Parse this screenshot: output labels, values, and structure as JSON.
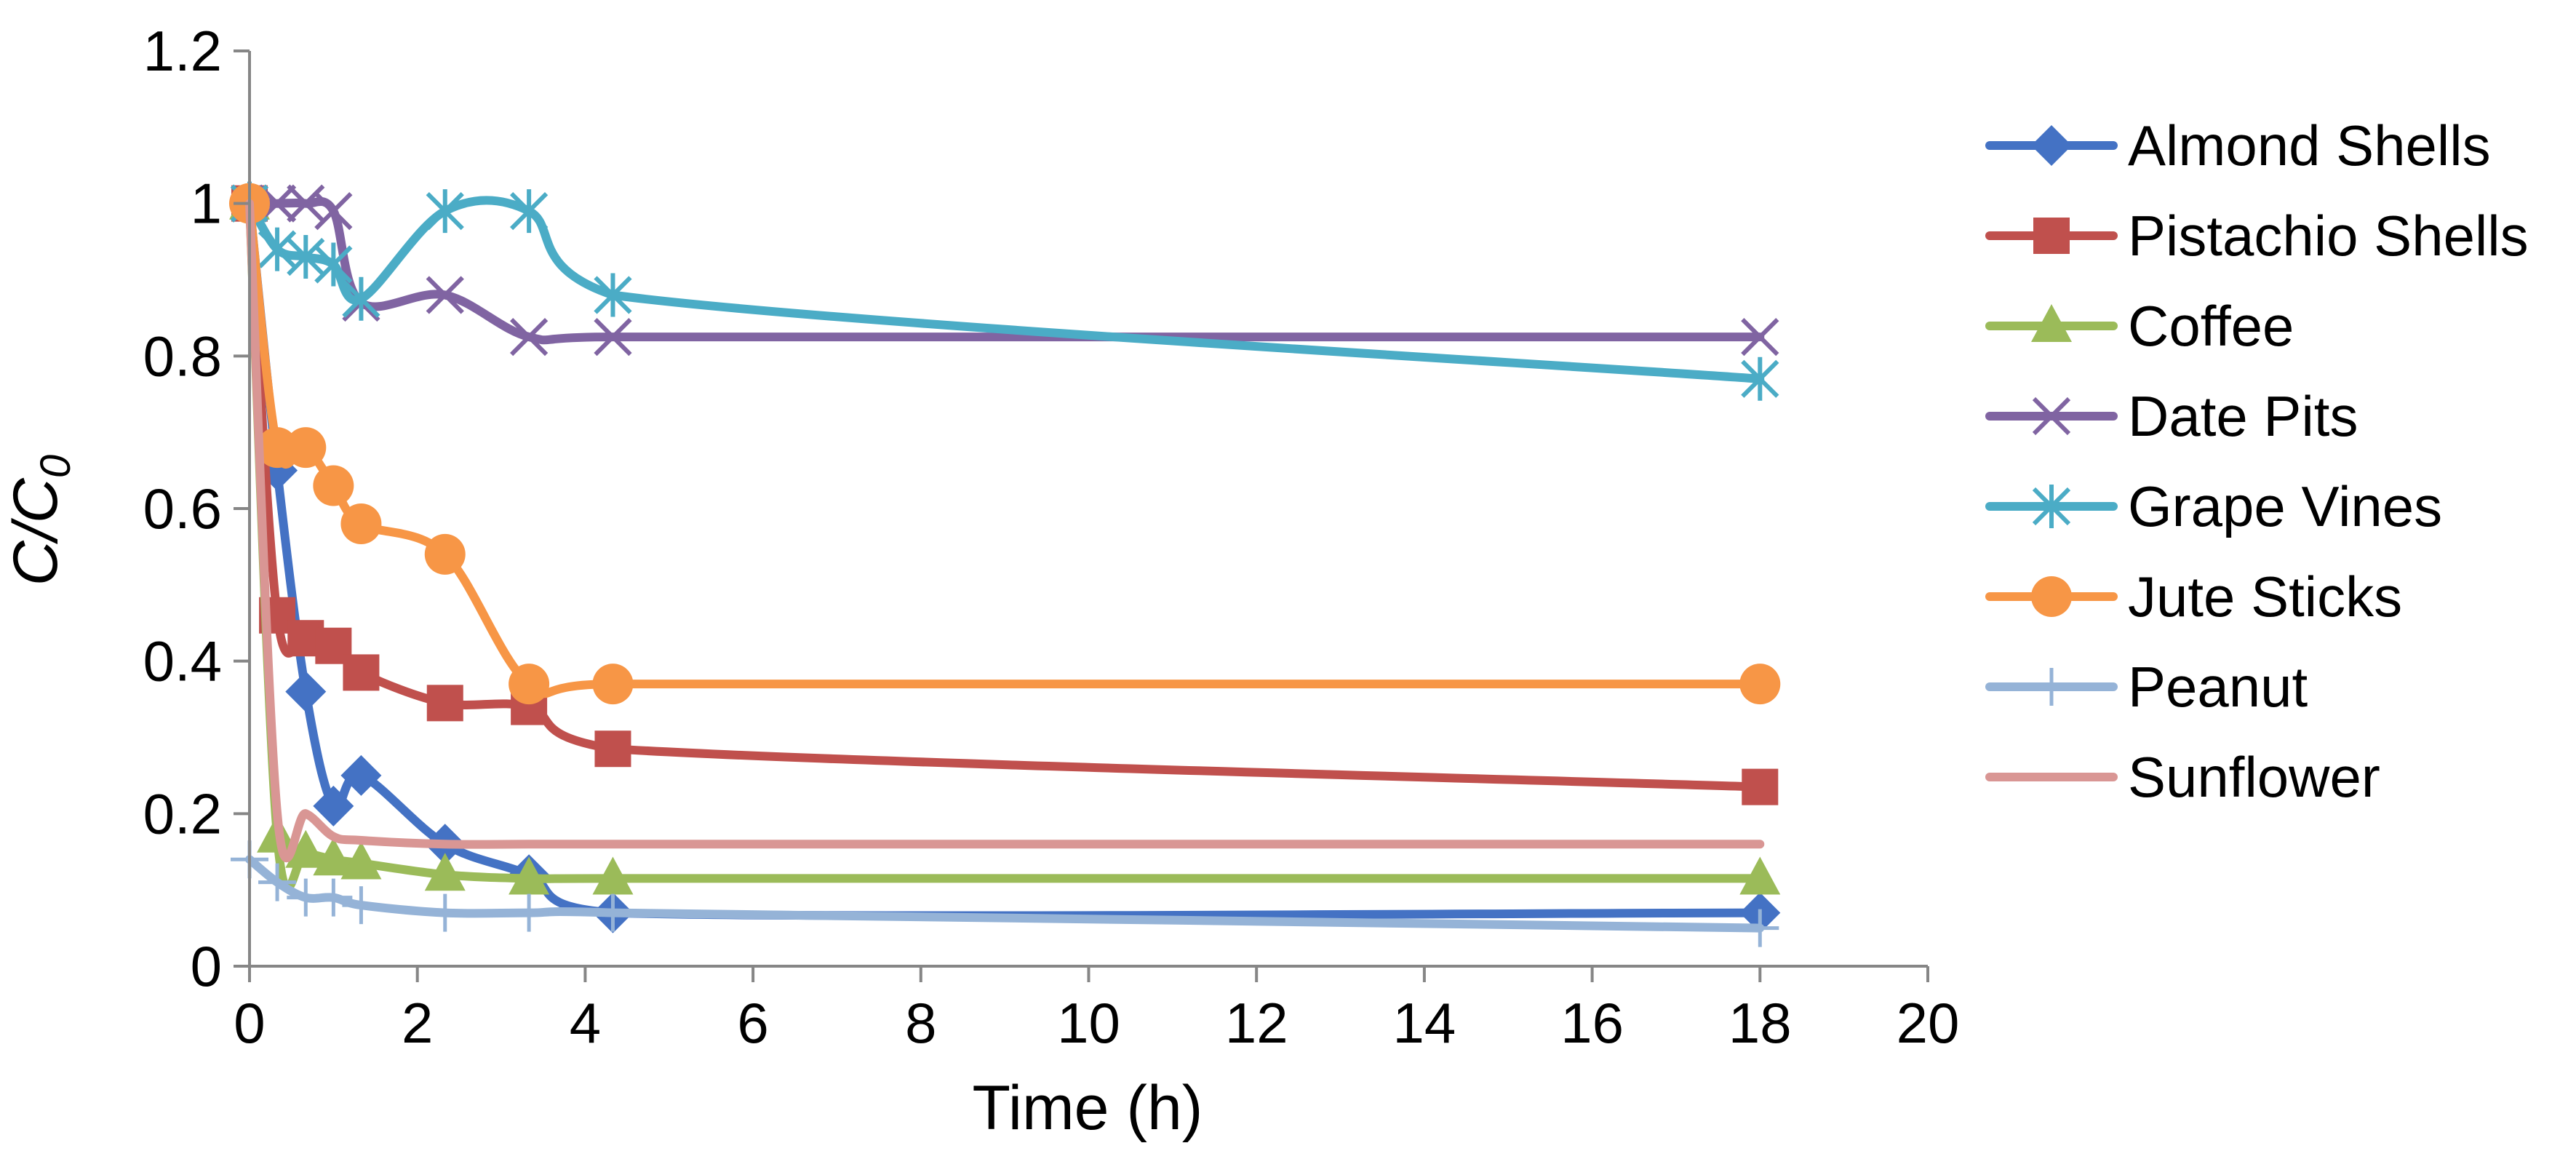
{
  "chart_data": {
    "type": "line",
    "title": "",
    "xlabel": "Time (h)",
    "ylabel_main": "C/C",
    "ylabel_sub": "0",
    "xlim": [
      0,
      20
    ],
    "ylim": [
      0,
      1.2
    ],
    "x_ticks": [
      0,
      2,
      4,
      6,
      8,
      10,
      12,
      14,
      16,
      18,
      20
    ],
    "y_ticks": [
      "0",
      "0.2",
      "0.4",
      "0.6",
      "0.8",
      "1",
      "1.2"
    ],
    "grid": false,
    "legend_position": "right",
    "series": [
      {
        "name": "Almond Shells",
        "color": "#4472C4",
        "marker": "diamond",
        "x": [
          0,
          0.33,
          0.67,
          1.0,
          1.33,
          2.33,
          3.33,
          4.33,
          18
        ],
        "y": [
          1.0,
          0.65,
          0.36,
          0.21,
          0.25,
          0.16,
          0.12,
          0.07,
          0.07
        ]
      },
      {
        "name": "Pistachio Shells",
        "color": "#C0504D",
        "marker": "square",
        "x": [
          0,
          0.33,
          0.67,
          1.0,
          1.33,
          2.33,
          3.33,
          4.33,
          18
        ],
        "y": [
          1.0,
          0.46,
          0.43,
          0.42,
          0.385,
          0.345,
          0.34,
          0.285,
          0.235
        ]
      },
      {
        "name": "Coffee",
        "color": "#9BBB59",
        "marker": "triangle",
        "x": [
          0,
          0.33,
          0.67,
          1.0,
          1.33,
          2.33,
          3.33,
          4.33,
          18
        ],
        "y": [
          1.0,
          0.17,
          0.15,
          0.14,
          0.135,
          0.12,
          0.115,
          0.115,
          0.115
        ]
      },
      {
        "name": "Date Pits",
        "color": "#8064A2",
        "marker": "x",
        "x": [
          0,
          0.33,
          0.67,
          1.0,
          1.33,
          2.33,
          3.33,
          4.33,
          18
        ],
        "y": [
          1.0,
          1.0,
          1.0,
          0.99,
          0.87,
          0.88,
          0.825,
          0.825,
          0.825
        ]
      },
      {
        "name": "Grape Vines",
        "color": "#4BACC6",
        "marker": "asterisk",
        "x": [
          0,
          0.33,
          0.67,
          1.0,
          1.33,
          2.33,
          3.33,
          4.33,
          18
        ],
        "y": [
          1.0,
          0.94,
          0.93,
          0.92,
          0.875,
          0.99,
          0.99,
          0.88,
          0.77
        ]
      },
      {
        "name": "Jute Sticks",
        "color": "#F79646",
        "marker": "circle",
        "x": [
          0,
          0.33,
          0.67,
          1.0,
          1.33,
          2.33,
          3.33,
          4.33,
          18
        ],
        "y": [
          1.0,
          0.68,
          0.68,
          0.63,
          0.58,
          0.54,
          0.37,
          0.37,
          0.37
        ]
      },
      {
        "name": "Peanut",
        "color": "#95B3D7",
        "marker": "plus",
        "x": [
          0,
          0.33,
          0.67,
          1.0,
          1.33,
          2.33,
          3.33,
          4.33,
          18
        ],
        "y": [
          0.14,
          0.11,
          0.09,
          0.09,
          0.08,
          0.07,
          0.07,
          0.07,
          0.05
        ]
      },
      {
        "name": "Sunflower",
        "color": "#D99694",
        "marker": "none",
        "x": [
          0,
          0.33,
          0.67,
          1.0,
          1.33,
          2.33,
          3.33,
          4.33,
          18
        ],
        "y": [
          1.0,
          0.2,
          0.2,
          0.17,
          0.165,
          0.16,
          0.16,
          0.16,
          0.16
        ]
      }
    ]
  }
}
